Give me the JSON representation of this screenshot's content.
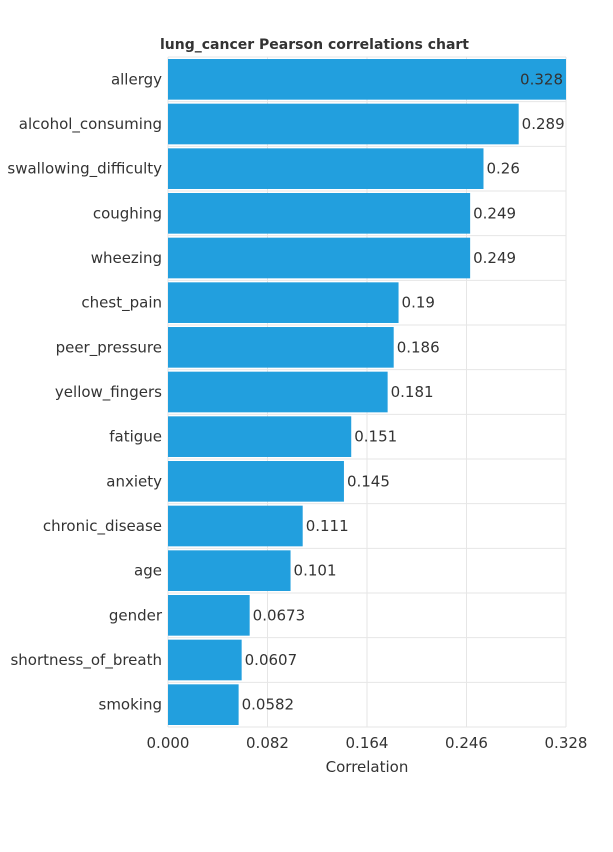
{
  "chart_data": {
    "type": "bar",
    "orientation": "horizontal",
    "title": "lung_cancer Pearson correlations chart",
    "xlabel": "Correlation",
    "ylabel": "",
    "categories": [
      "allergy",
      "alcohol_consuming",
      "swallowing_difficulty",
      "coughing",
      "wheezing",
      "chest_pain",
      "peer_pressure",
      "yellow_fingers",
      "fatigue",
      "anxiety",
      "chronic_disease",
      "age",
      "gender",
      "shortness_of_breath",
      "smoking"
    ],
    "values": [
      0.328,
      0.289,
      0.26,
      0.249,
      0.249,
      0.19,
      0.186,
      0.181,
      0.151,
      0.145,
      0.111,
      0.101,
      0.0673,
      0.0607,
      0.0582
    ],
    "value_labels": [
      "0.328",
      "0.289",
      "0.26",
      "0.249",
      "0.249",
      "0.19",
      "0.186",
      "0.181",
      "0.151",
      "0.145",
      "0.111",
      "0.101",
      "0.0673",
      "0.0607",
      "0.0582"
    ],
    "xlim": [
      0,
      0.328
    ],
    "x_ticks": [
      0,
      0.082,
      0.164,
      0.246,
      0.328
    ],
    "x_tick_labels": [
      "0.000",
      "0.082",
      "0.164",
      "0.246",
      "0.328"
    ],
    "grid": true,
    "legend": "none",
    "bar_color": "#229fde",
    "grid_color": "#e6e6e6",
    "text_color": "#333333"
  }
}
